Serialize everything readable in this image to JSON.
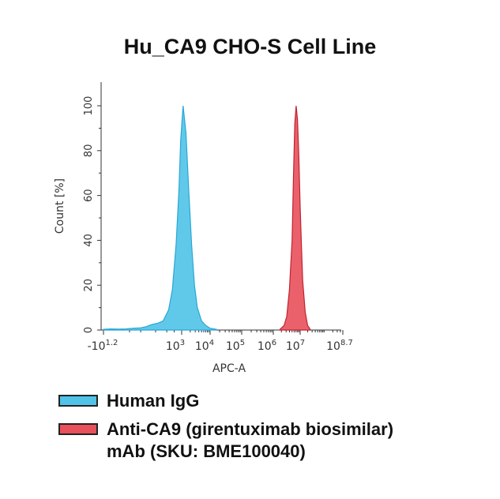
{
  "chart_data": {
    "type": "histogram",
    "title": "Hu_CA9 CHO-S Cell Line",
    "xlabel": "APC-A",
    "ylabel": "Count [%]",
    "x_scale": "log",
    "xlim_exponent": [
      1.2,
      8.7
    ],
    "ylim": [
      0,
      105
    ],
    "y_ticks": [
      0,
      20,
      40,
      60,
      80,
      100
    ],
    "x_tick_labels": [
      {
        "base": "-10",
        "exp": "1.2"
      },
      {
        "base": "10",
        "exp": "3"
      },
      {
        "base": "10",
        "exp": "4"
      },
      {
        "base": "10",
        "exp": "5"
      },
      {
        "base": "10",
        "exp": "6"
      },
      {
        "base": "10",
        "exp": "7"
      },
      {
        "base": "10",
        "exp": "8.7"
      }
    ],
    "series": [
      {
        "name": "Human IgG",
        "color": "#4FC3E8",
        "stroke": "#2AA7D6",
        "points": [
          [
            -1.2,
            0.3
          ],
          [
            -0.8,
            0.5
          ],
          [
            -0.4,
            0.4
          ],
          [
            0.0,
            0.5
          ],
          [
            0.4,
            0.8
          ],
          [
            0.8,
            1.0
          ],
          [
            1.1,
            1.5
          ],
          [
            1.4,
            2.5
          ],
          [
            1.7,
            3
          ],
          [
            2.0,
            4
          ],
          [
            2.3,
            9
          ],
          [
            2.5,
            18
          ],
          [
            2.7,
            38
          ],
          [
            2.85,
            62
          ],
          [
            2.95,
            85
          ],
          [
            3.05,
            100
          ],
          [
            3.15,
            88
          ],
          [
            3.25,
            62
          ],
          [
            3.35,
            38
          ],
          [
            3.45,
            20
          ],
          [
            3.55,
            10
          ],
          [
            3.7,
            4
          ],
          [
            3.85,
            2
          ],
          [
            4.0,
            0.8
          ],
          [
            4.2,
            0.3
          ]
        ]
      },
      {
        "name": "Anti-CA9 (girentuximab biosimilar) mAb (SKU: BME100040)",
        "color": "#E8505B",
        "stroke": "#C0232F",
        "points": [
          [
            6.25,
            0.3
          ],
          [
            6.4,
            2
          ],
          [
            6.5,
            6
          ],
          [
            6.6,
            18
          ],
          [
            6.7,
            40
          ],
          [
            6.75,
            68
          ],
          [
            6.8,
            92
          ],
          [
            6.85,
            100
          ],
          [
            6.9,
            94
          ],
          [
            6.95,
            78
          ],
          [
            7.0,
            55
          ],
          [
            7.05,
            38
          ],
          [
            7.1,
            22
          ],
          [
            7.2,
            8
          ],
          [
            7.3,
            2
          ],
          [
            7.4,
            0.3
          ]
        ]
      }
    ]
  },
  "legend": [
    {
      "label_lines": [
        "Human IgG"
      ],
      "color": "#4FC3E8"
    },
    {
      "label_lines": [
        "Anti-CA9 (girentuximab biosimilar)",
        "mAb (SKU: BME100040)"
      ],
      "color": "#E8505B"
    }
  ]
}
